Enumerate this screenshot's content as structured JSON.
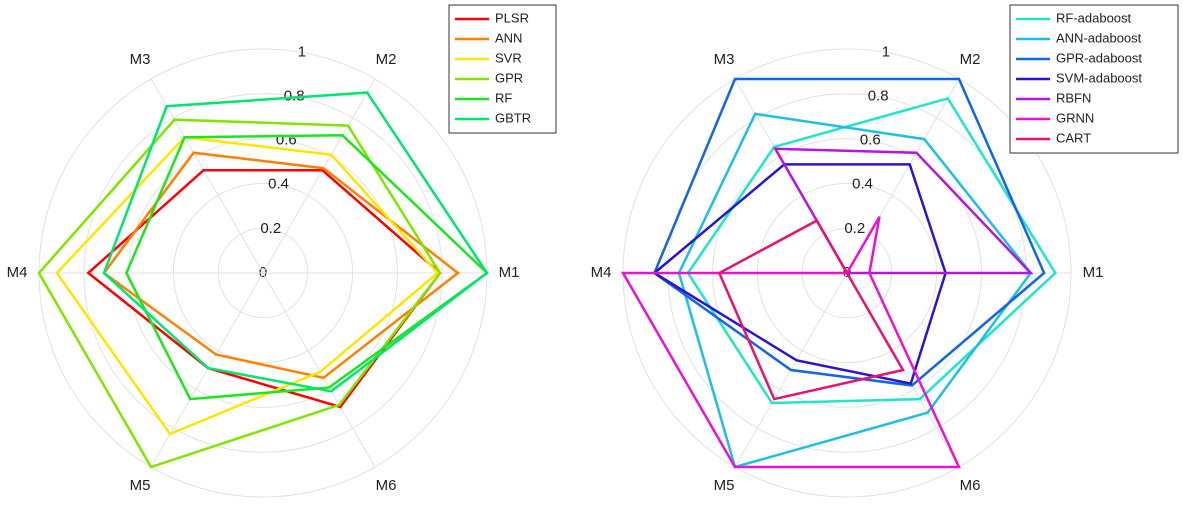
{
  "chart_data": [
    {
      "type": "radar",
      "categories": [
        "M1",
        "M2",
        "M3",
        "M4",
        "M5",
        "M6"
      ],
      "rlim": [
        0,
        1
      ],
      "rticks": [
        0,
        0.2,
        0.4,
        0.6,
        0.8,
        1
      ],
      "grid": true,
      "legend": "upper right",
      "series": [
        {
          "name": "PLSR",
          "color": "#ff0000",
          "values": [
            0.79,
            0.53,
            0.53,
            0.78,
            0.49,
            0.69
          ]
        },
        {
          "name": "ANN",
          "color": "#ff7f00",
          "values": [
            0.87,
            0.54,
            0.62,
            0.71,
            0.42,
            0.54
          ]
        },
        {
          "name": "SVR",
          "color": "#ffe600",
          "values": [
            0.78,
            0.61,
            0.7,
            0.92,
            0.83,
            0.51
          ]
        },
        {
          "name": "GPR",
          "color": "#80e600",
          "values": [
            0.79,
            0.76,
            0.79,
            1.0,
            1.0,
            0.68
          ]
        },
        {
          "name": "RF",
          "color": "#1ee61e",
          "values": [
            1.0,
            0.71,
            0.7,
            0.61,
            0.65,
            0.59
          ]
        },
        {
          "name": "GBTR",
          "color": "#00e66e",
          "values": [
            1.0,
            0.93,
            0.86,
            0.71,
            0.49,
            0.61
          ]
        }
      ]
    },
    {
      "type": "radar",
      "categories": [
        "M1",
        "M2",
        "M3",
        "M4",
        "M5",
        "M6"
      ],
      "rlim": [
        0,
        1
      ],
      "rticks": [
        0,
        0.2,
        0.4,
        0.6,
        0.8,
        1
      ],
      "grid": true,
      "legend": "upper right",
      "series": [
        {
          "name": "RF-adaboost",
          "color": "#1ee6c8",
          "values": [
            0.93,
            0.9,
            0.65,
            0.71,
            0.67,
            0.65
          ]
        },
        {
          "name": "ANN-adaboost",
          "color": "#1ebee6",
          "values": [
            0.82,
            0.69,
            0.82,
            0.75,
            1.0,
            0.72
          ]
        },
        {
          "name": "GPR-adaboost",
          "color": "#1464e6",
          "values": [
            0.88,
            1.0,
            1.0,
            0.86,
            0.5,
            0.58
          ]
        },
        {
          "name": "SVM-adaboost",
          "color": "#2814d2",
          "values": [
            0.44,
            0.56,
            0.56,
            0.86,
            0.45,
            0.57
          ]
        },
        {
          "name": "RBFN",
          "color": "#b414e6",
          "values": [
            0.82,
            0.62,
            0.64,
            0,
            0,
            0
          ]
        },
        {
          "name": "GRNN",
          "color": "#e614d2",
          "values": [
            0.1,
            0.29,
            0,
            1.0,
            1.0,
            1.0
          ]
        },
        {
          "name": "CART",
          "color": "#e6146e",
          "values": [
            0,
            0,
            0.27,
            0.57,
            0.65,
            0.5
          ]
        }
      ]
    }
  ]
}
